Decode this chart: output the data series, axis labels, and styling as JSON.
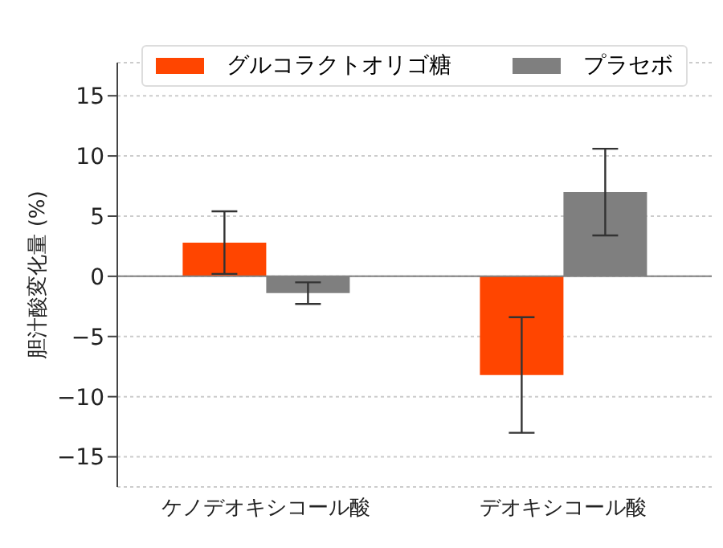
{
  "chart_data": {
    "type": "bar",
    "ylabel": "胆汁酸変化量 (%)",
    "categories": [
      "ケノデオキシコール酸",
      "デオキシコール酸"
    ],
    "series": [
      {
        "name": "グルコラクトオリゴ糖",
        "color": "#ff4500",
        "values": [
          2.8,
          -8.2
        ],
        "errors": [
          2.6,
          4.8
        ]
      },
      {
        "name": "プラセボ",
        "color": "#7f7f7f",
        "values": [
          -1.4,
          7.0
        ],
        "errors": [
          0.9,
          3.6
        ]
      }
    ],
    "ylim": [
      -17.5,
      17.75
    ],
    "yticks": [
      {
        "value": -15,
        "label": "−15"
      },
      {
        "value": -10,
        "label": "−10"
      },
      {
        "value": -5,
        "label": "−5"
      },
      0,
      5,
      10,
      15
    ],
    "grid": "y",
    "legend": "top",
    "ref_lines": [
      {
        "axis": "y",
        "value": 0,
        "color": "#808080"
      }
    ]
  }
}
